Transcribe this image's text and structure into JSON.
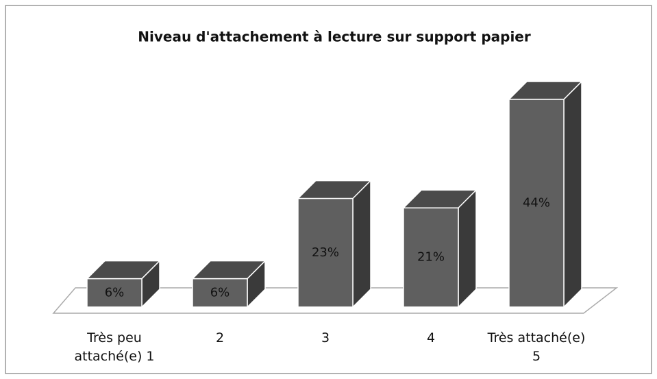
{
  "chart_data": {
    "type": "bar3d",
    "title": "Niveau d'attachement à lecture sur support papier",
    "categories": [
      "Très peu attaché(e) 1",
      "2",
      "3",
      "4",
      "Très attaché(e) 5"
    ],
    "values": [
      6,
      6,
      23,
      21,
      44
    ],
    "value_labels": [
      "6%",
      "6%",
      "23%",
      "21%",
      "44%"
    ],
    "color": "#5f5f5f"
  }
}
